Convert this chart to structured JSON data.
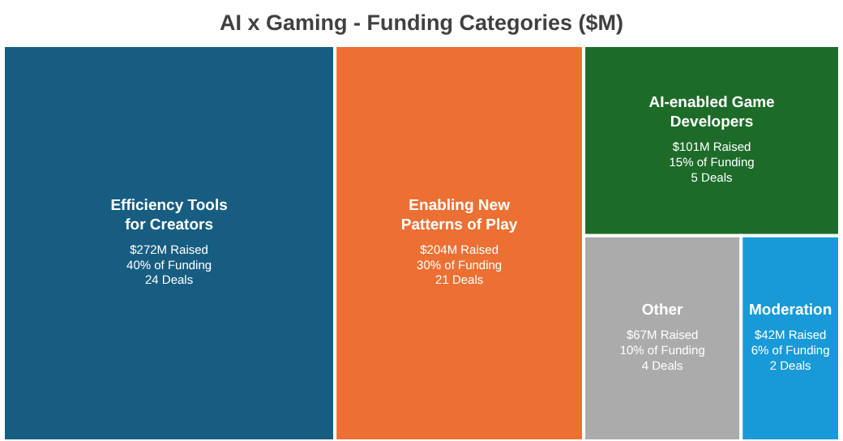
{
  "chart_data": {
    "type": "other",
    "title": "AI x Gaming - Funding Categories ($M)",
    "categories": [
      "Efficiency Tools for Creators",
      "Enabling New Patterns of Play",
      "AI-enabled Game Developers",
      "Other",
      "Moderation"
    ],
    "series": [
      {
        "values": [
          272,
          204,
          101,
          67,
          42
        ],
        "colors": [
          "#175d81",
          "#ec7033",
          "#1d6b29",
          "#ababab",
          "#179ad7"
        ],
        "value_labels": [
          "$272M Raised",
          "$204M Raised",
          "$101M Raised",
          "$67M Raised",
          "$42M Raised"
        ]
      },
      {
        "values": [
          40,
          30,
          15,
          10,
          6
        ],
        "value_labels": [
          "40% of Funding",
          "30% of Funding",
          "15% of Funding",
          "10% of Funding",
          "6% of Funding"
        ]
      },
      {
        "values": [
          24,
          21,
          5,
          4,
          2
        ],
        "value_labels": [
          "24 Deals",
          "21 Deals",
          "5 Deals",
          "4 Deals",
          "2 Deals"
        ]
      }
    ]
  }
}
